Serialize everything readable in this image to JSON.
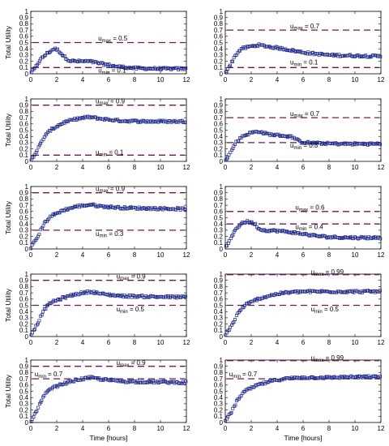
{
  "axis_common": {
    "xlim": [
      0,
      12
    ],
    "ylim": [
      0,
      1
    ],
    "x_ticks": [
      "0",
      "2",
      "4",
      "6",
      "8",
      "10",
      "12"
    ],
    "y_ticks": [
      "0",
      "0.1",
      "0.2",
      "0.3",
      "0.4",
      "0.5",
      "0.6",
      "0.7",
      "0.8",
      "0.9",
      "1"
    ],
    "ylabel": "Total Utility",
    "xlabel": "Time [hours]",
    "marker_color": "#1f2a8c",
    "threshold_color": "#6b1a5a"
  },
  "chart_data": [
    {
      "type": "scatter",
      "row": 0,
      "col": 0,
      "umax": {
        "sym": "u",
        "sub": "max",
        "text": " = 0.5",
        "value": 0.5
      },
      "umin": {
        "sym": "u",
        "sub": "min",
        "text": " = 0.1",
        "value": 0.1
      },
      "key_points": [
        [
          0,
          0.02
        ],
        [
          0.3,
          0.08
        ],
        [
          0.7,
          0.22
        ],
        [
          1.2,
          0.32
        ],
        [
          1.8,
          0.4
        ],
        [
          2.1,
          0.38
        ],
        [
          2.6,
          0.27
        ],
        [
          3.0,
          0.21
        ],
        [
          3.5,
          0.2
        ],
        [
          4.5,
          0.2
        ],
        [
          5.5,
          0.16
        ],
        [
          6.5,
          0.12
        ],
        [
          8,
          0.09
        ],
        [
          10,
          0.08
        ],
        [
          12,
          0.08
        ]
      ]
    },
    {
      "type": "scatter",
      "row": 0,
      "col": 1,
      "umax": {
        "sym": "u",
        "sub": "max",
        "text": " = 0.7",
        "value": 0.7
      },
      "umin": {
        "sym": "u",
        "sub": "min",
        "text": " = 0.1",
        "value": 0.1
      },
      "key_points": [
        [
          0,
          0.02
        ],
        [
          0.4,
          0.15
        ],
        [
          0.8,
          0.3
        ],
        [
          1.2,
          0.4
        ],
        [
          2.0,
          0.44
        ],
        [
          2.6,
          0.46
        ],
        [
          3.5,
          0.43
        ],
        [
          4.5,
          0.4
        ],
        [
          5.5,
          0.36
        ],
        [
          6.5,
          0.33
        ],
        [
          8,
          0.3
        ],
        [
          10,
          0.29
        ],
        [
          12,
          0.28
        ]
      ]
    },
    {
      "type": "scatter",
      "row": 1,
      "col": 0,
      "umax": {
        "sym": "u",
        "sub": "max",
        "text": " = 0.9",
        "value": 0.9
      },
      "umin": {
        "sym": "u",
        "sub": "min",
        "text": " = 0.1",
        "value": 0.1
      },
      "key_points": [
        [
          0,
          0.02
        ],
        [
          0.5,
          0.18
        ],
        [
          1.0,
          0.38
        ],
        [
          1.5,
          0.5
        ],
        [
          2.5,
          0.62
        ],
        [
          3.5,
          0.68
        ],
        [
          4.5,
          0.71
        ],
        [
          5.5,
          0.68
        ],
        [
          7,
          0.65
        ],
        [
          9,
          0.64
        ],
        [
          12,
          0.64
        ]
      ]
    },
    {
      "type": "scatter",
      "row": 1,
      "col": 1,
      "umax": {
        "sym": "u",
        "sub": "max",
        "text": " = 0.7",
        "value": 0.7
      },
      "umin": {
        "sym": "u",
        "sub": "min",
        "text": " = 0.3",
        "value": 0.3
      },
      "key_points": [
        [
          0,
          0.02
        ],
        [
          0.4,
          0.14
        ],
        [
          0.8,
          0.3
        ],
        [
          1.3,
          0.4
        ],
        [
          2.0,
          0.46
        ],
        [
          2.6,
          0.48
        ],
        [
          3.0,
          0.45
        ],
        [
          3.5,
          0.43
        ],
        [
          4.5,
          0.41
        ],
        [
          5.2,
          0.39
        ],
        [
          5.8,
          0.31
        ],
        [
          7,
          0.29
        ],
        [
          9,
          0.28
        ],
        [
          12,
          0.28
        ]
      ]
    },
    {
      "type": "scatter",
      "row": 2,
      "col": 0,
      "umax": {
        "sym": "u",
        "sub": "max",
        "text": " = 0.9",
        "value": 0.9
      },
      "umin": {
        "sym": "u",
        "sub": "min",
        "text": " = 0.3",
        "value": 0.3
      },
      "key_points": [
        [
          0,
          0.02
        ],
        [
          0.5,
          0.18
        ],
        [
          1.0,
          0.4
        ],
        [
          1.5,
          0.52
        ],
        [
          2.5,
          0.62
        ],
        [
          3.5,
          0.68
        ],
        [
          4.6,
          0.71
        ],
        [
          5.5,
          0.68
        ],
        [
          7,
          0.66
        ],
        [
          9,
          0.65
        ],
        [
          12,
          0.64
        ]
      ]
    },
    {
      "type": "scatter",
      "row": 2,
      "col": 1,
      "umax": {
        "sym": "u",
        "sub": "max",
        "text": " = 0.6",
        "value": 0.6
      },
      "umin": {
        "sym": "u",
        "sub": "min",
        "text": " = 0.4",
        "value": 0.4
      },
      "key_points": [
        [
          0,
          0.02
        ],
        [
          0.4,
          0.15
        ],
        [
          0.8,
          0.32
        ],
        [
          1.3,
          0.42
        ],
        [
          1.8,
          0.44
        ],
        [
          2.3,
          0.4
        ],
        [
          2.6,
          0.32
        ],
        [
          3.0,
          0.3
        ],
        [
          4,
          0.29
        ],
        [
          5,
          0.27
        ],
        [
          6,
          0.24
        ],
        [
          7,
          0.21
        ],
        [
          8,
          0.19
        ],
        [
          10,
          0.18
        ],
        [
          12,
          0.18
        ]
      ]
    },
    {
      "type": "scatter",
      "row": 3,
      "col": 0,
      "umax": {
        "sym": "u",
        "sub": "max",
        "text": " = 0.9",
        "value": 0.9
      },
      "umin": {
        "sym": "u",
        "sub": "min",
        "text": " = 0.5",
        "value": 0.5
      },
      "key_points": [
        [
          0,
          0.02
        ],
        [
          0.5,
          0.2
        ],
        [
          1.0,
          0.42
        ],
        [
          1.5,
          0.54
        ],
        [
          2.5,
          0.62
        ],
        [
          3.5,
          0.68
        ],
        [
          4.6,
          0.72
        ],
        [
          5.5,
          0.68
        ],
        [
          7,
          0.65
        ],
        [
          9,
          0.64
        ],
        [
          12,
          0.63
        ]
      ]
    },
    {
      "type": "scatter",
      "row": 3,
      "col": 1,
      "umax": {
        "sym": "u",
        "sub": "max",
        "text": " = 0.99",
        "value": 0.99
      },
      "umin": {
        "sym": "u",
        "sub": "min",
        "text": " = 0.5",
        "value": 0.5
      },
      "key_points": [
        [
          0,
          0.02
        ],
        [
          0.5,
          0.18
        ],
        [
          1.0,
          0.38
        ],
        [
          1.5,
          0.5
        ],
        [
          2.5,
          0.6
        ],
        [
          3.5,
          0.66
        ],
        [
          4.5,
          0.7
        ],
        [
          6,
          0.72
        ],
        [
          8,
          0.72
        ],
        [
          10,
          0.72
        ],
        [
          12,
          0.72
        ]
      ]
    },
    {
      "type": "scatter",
      "row": 4,
      "col": 0,
      "umax": {
        "sym": "u",
        "sub": "max",
        "text": " = 0.9",
        "value": 0.9
      },
      "umin": {
        "sym": "u",
        "sub": "min",
        "text": " = 0.7",
        "value": 0.7
      },
      "key_points": [
        [
          0,
          0.02
        ],
        [
          0.5,
          0.2
        ],
        [
          1.0,
          0.42
        ],
        [
          1.5,
          0.54
        ],
        [
          2.5,
          0.62
        ],
        [
          3.5,
          0.68
        ],
        [
          4.6,
          0.72
        ],
        [
          5.5,
          0.69
        ],
        [
          7,
          0.66
        ],
        [
          9,
          0.65
        ],
        [
          12,
          0.64
        ]
      ]
    },
    {
      "type": "scatter",
      "row": 4,
      "col": 1,
      "umax": {
        "sym": "u",
        "sub": "max",
        "text": " = 0.99",
        "value": 0.99
      },
      "umin": {
        "sym": "u",
        "sub": "min",
        "text": " = 0.7",
        "value": 0.7
      },
      "key_points": [
        [
          0,
          0.02
        ],
        [
          0.5,
          0.18
        ],
        [
          1.0,
          0.38
        ],
        [
          1.5,
          0.5
        ],
        [
          2.5,
          0.6
        ],
        [
          3.5,
          0.66
        ],
        [
          4.5,
          0.7
        ],
        [
          6,
          0.72
        ],
        [
          8,
          0.72
        ],
        [
          10,
          0.73
        ],
        [
          12,
          0.73
        ]
      ]
    }
  ]
}
